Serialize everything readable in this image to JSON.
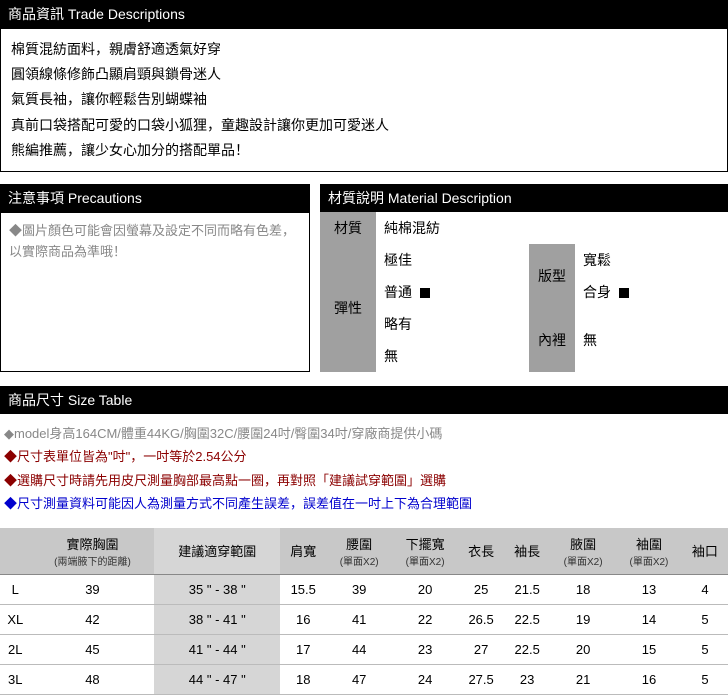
{
  "trade": {
    "header": "商品資訊 Trade Descriptions",
    "lines": [
      "棉質混紡面料，親膚舒適透氣好穿",
      "圓領線條修飾凸顯肩頸與鎖骨迷人",
      "氣質長袖，讓你輕鬆告別蝴蝶袖",
      "真前口袋搭配可愛的口袋小狐狸，童趣設計讓你更加可愛迷人",
      "熊編推薦，讓少女心加分的搭配單品！"
    ]
  },
  "precautions": {
    "header": "注意事項 Precautions",
    "text": "◆圖片顏色可能會因螢幕及設定不同而略有色差，以實際商品為準哦！"
  },
  "material": {
    "header": "材質說明 Material Description",
    "label_material": "材質",
    "value_material": "純棉混紡",
    "label_elastic": "彈性",
    "elastic_opts": [
      "極佳",
      "普通",
      "略有",
      "無"
    ],
    "elastic_selected": 1,
    "label_fit": "版型",
    "fit_opts": [
      "寬鬆",
      "合身"
    ],
    "fit_selected": 1,
    "label_lining": "內裡",
    "value_lining": "無"
  },
  "size": {
    "header": "商品尺寸 Size Table",
    "notes": [
      {
        "cls": "note-gray",
        "text": "◆model身高164CM/體重44KG/胸圍32C/腰圍24吋/臀圍34吋/穿廠商提供小碼"
      },
      {
        "cls": "note-red",
        "text": "◆尺寸表單位皆為\"吋\"，一吋等於2.54公分"
      },
      {
        "cls": "note-red",
        "text": "◆選購尺寸時請先用皮尺測量胸部最高點一圈，再對照「建議試穿範圍」選購"
      },
      {
        "cls": "note-blue",
        "text": "◆尺寸測量資料可能因人為測量方式不同產生誤差，誤差值在一吋上下為合理範圍"
      }
    ],
    "columns": [
      {
        "label": "",
        "sub": ""
      },
      {
        "label": "實際胸圍",
        "sub": "(兩端腋下的距離)"
      },
      {
        "label": "建議適穿範圍",
        "sub": ""
      },
      {
        "label": "肩寬",
        "sub": ""
      },
      {
        "label": "腰圍",
        "sub": "(單面X2)"
      },
      {
        "label": "下擺寬",
        "sub": "(單面X2)"
      },
      {
        "label": "衣長",
        "sub": ""
      },
      {
        "label": "袖長",
        "sub": ""
      },
      {
        "label": "腋圍",
        "sub": "(單面X2)"
      },
      {
        "label": "袖圍",
        "sub": "(單面X2)"
      },
      {
        "label": "袖口",
        "sub": ""
      }
    ],
    "rows": [
      [
        "L",
        "39",
        "35 \" - 38 \"",
        "15.5",
        "39",
        "20",
        "25",
        "21.5",
        "18",
        "13",
        "4"
      ],
      [
        "XL",
        "42",
        "38 \" - 41 \"",
        "16",
        "41",
        "22",
        "26.5",
        "22.5",
        "19",
        "14",
        "5"
      ],
      [
        "2L",
        "45",
        "41 \" - 44 \"",
        "17",
        "44",
        "23",
        "27",
        "22.5",
        "20",
        "15",
        "5"
      ],
      [
        "3L",
        "48",
        "44 \" - 47 \"",
        "18",
        "47",
        "24",
        "27.5",
        "23",
        "21",
        "16",
        "5"
      ]
    ],
    "range_col_index": 2
  },
  "colors": {
    "header_bg": "#000000",
    "header_fg": "#ffffff",
    "gray_bg": "#a0a0a0",
    "th_bg": "#c8c8c8",
    "range_bg": "#d6d6d6"
  }
}
